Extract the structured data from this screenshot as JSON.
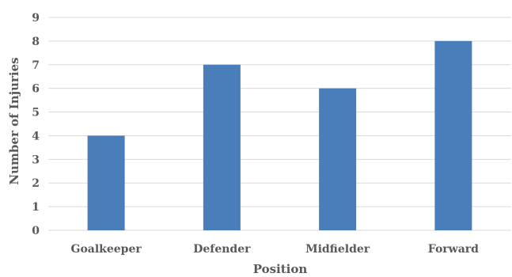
{
  "chart_data": {
    "type": "bar",
    "title": "",
    "xlabel": "Position",
    "ylabel": "Number of Injuries",
    "categories": [
      "Goalkeeper",
      "Defender",
      "Midfielder",
      "Forward"
    ],
    "values": [
      4,
      7,
      6,
      8
    ],
    "ylim": [
      0,
      9
    ],
    "yticks": [
      "0",
      "1",
      "2",
      "3",
      "4",
      "5",
      "6",
      "7",
      "8",
      "9"
    ],
    "grid": true,
    "legend": "none",
    "bar_color": "#4a7ebb",
    "grid_color": "#d9d9d9",
    "text_color": "#595959"
  }
}
